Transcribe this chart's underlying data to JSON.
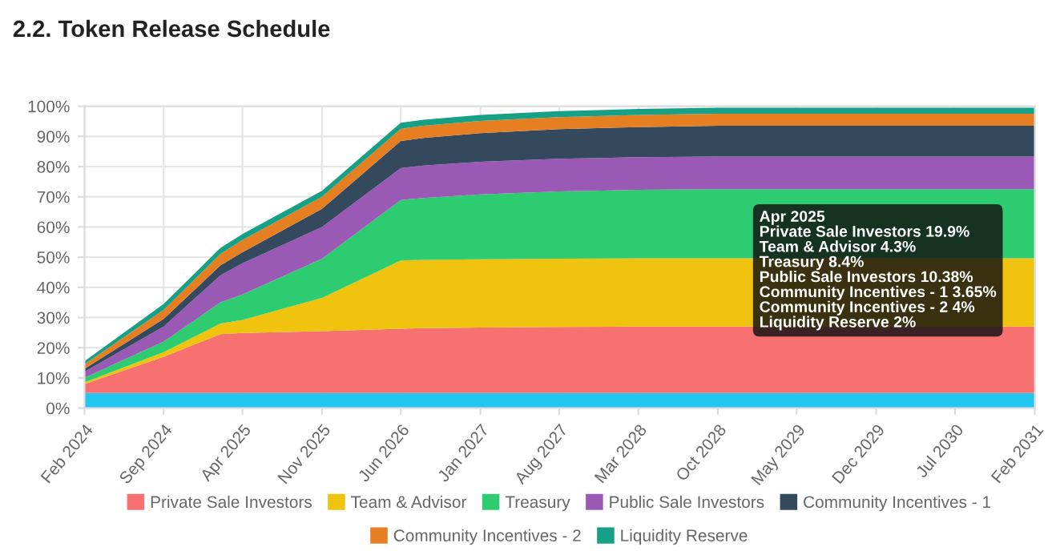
{
  "chart_data": {
    "type": "area",
    "stacked": true,
    "title": "2.2. Token Release Schedule",
    "x": [
      "2024-02",
      "2024-09",
      "2025-02",
      "2025-04",
      "2025-11",
      "2026-06",
      "2026-08",
      "2027-01",
      "2027-08",
      "2028-03",
      "2028-10",
      "2031-02"
    ],
    "series": [
      {
        "color": "#22c7f0",
        "values": [
          5,
          5,
          5,
          5,
          5,
          5,
          5,
          5,
          5,
          5,
          5,
          5
        ]
      },
      {
        "name": "Private Sale Investors",
        "color": "#f87171",
        "values": [
          3,
          12,
          19.5,
          19.9,
          20.5,
          21.3,
          21.5,
          21.7,
          21.9,
          22,
          22,
          22
        ]
      },
      {
        "name": "Team & Advisor",
        "color": "#f0c30f",
        "values": [
          0.5,
          1.5,
          3.5,
          4.3,
          11,
          22.6,
          22.6,
          22.6,
          22.6,
          22.6,
          22.6,
          22.6
        ]
      },
      {
        "name": "Treasury",
        "color": "#2ecc71",
        "values": [
          1.5,
          3.5,
          7,
          8.4,
          13,
          20,
          20.5,
          21.5,
          22.3,
          22.7,
          22.9,
          22.9
        ]
      },
      {
        "name": "Public Sale Investors",
        "color": "#9b59b6",
        "values": [
          2,
          5,
          9,
          10.38,
          10.5,
          10.6,
          10.7,
          10.8,
          10.8,
          10.8,
          10.8,
          10.8
        ]
      },
      {
        "name": "Community Incentives - 1",
        "color": "#34495e",
        "values": [
          1,
          2.5,
          3.3,
          3.65,
          6,
          9,
          9.2,
          9.5,
          9.8,
          10,
          10.2,
          10.2
        ]
      },
      {
        "name": "Community Incentives - 2",
        "color": "#e67e22",
        "values": [
          1.5,
          3,
          3.8,
          4,
          4,
          4,
          4,
          4,
          4,
          4,
          4,
          4
        ]
      },
      {
        "name": "Liquidity Reserve",
        "color": "#16a085",
        "values": [
          1,
          2,
          2,
          2,
          2,
          2,
          2,
          2,
          2,
          2,
          2,
          2
        ]
      }
    ],
    "xlim": [
      "2024-02",
      "2031-02"
    ],
    "xticks": [
      {
        "value": "2024-02",
        "label": "Feb 2024"
      },
      {
        "value": "2024-09",
        "label": "Sep 2024"
      },
      {
        "value": "2025-04",
        "label": "Apr 2025"
      },
      {
        "value": "2025-11",
        "label": "Nov 2025"
      },
      {
        "value": "2026-06",
        "label": "Jun 2026"
      },
      {
        "value": "2027-01",
        "label": "Jan 2027"
      },
      {
        "value": "2027-08",
        "label": "Aug 2027"
      },
      {
        "value": "2028-03",
        "label": "Mar 2028"
      },
      {
        "value": "2028-10",
        "label": "Oct 2028"
      },
      {
        "value": "2029-05",
        "label": "May 2029"
      },
      {
        "value": "2029-12",
        "label": "Dec 2029"
      },
      {
        "value": "2030-07",
        "label": "Jul 2030"
      },
      {
        "value": "2031-02",
        "label": "Feb 2031"
      }
    ],
    "ylim": [
      0,
      100
    ],
    "yticks": [
      {
        "value": 0,
        "label": "0%"
      },
      {
        "value": 10,
        "label": "10%"
      },
      {
        "value": 20,
        "label": "20%"
      },
      {
        "value": 30,
        "label": "30%"
      },
      {
        "value": 40,
        "label": "40%"
      },
      {
        "value": 50,
        "label": "50%"
      },
      {
        "value": 60,
        "label": "60%"
      },
      {
        "value": 70,
        "label": "70%"
      },
      {
        "value": 80,
        "label": "80%"
      },
      {
        "value": 90,
        "label": "90%"
      },
      {
        "value": 100,
        "label": "100%"
      }
    ],
    "grid": true,
    "legend": "bottom",
    "annotations": [
      "Apr 2025\nPrivate Sale Investors 19.9%\nTeam & Advisor 4.3%\nTreasury 8.4%\nPublic Sale Investors 10.38%\nCommunity Incentives - 1 3.65%\nCommunity Incentives - 2 4%\nLiquidity Reserve 2%"
    ]
  }
}
